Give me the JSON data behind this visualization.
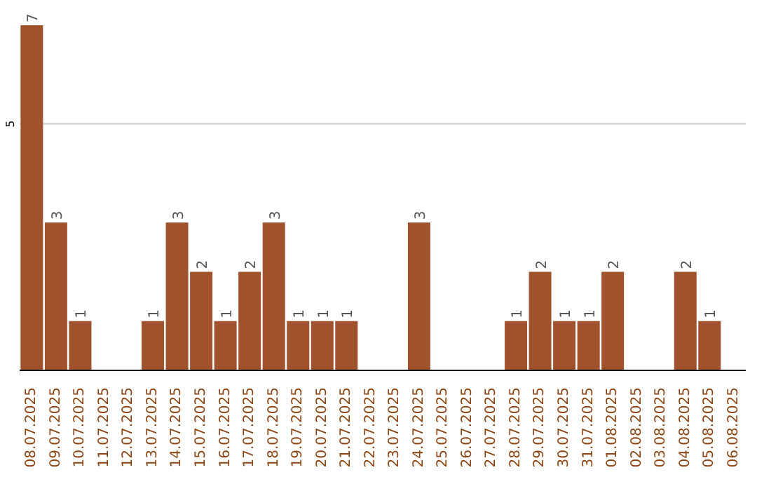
{
  "chart_data": {
    "type": "bar",
    "categories": [
      "08.07.2025",
      "09.07.2025",
      "10.07.2025",
      "11.07.2025",
      "12.07.2025",
      "13.07.2025",
      "14.07.2025",
      "15.07.2025",
      "16.07.2025",
      "17.07.2025",
      "18.07.2025",
      "19.07.2025",
      "20.07.2025",
      "21.07.2025",
      "22.07.2025",
      "23.07.2025",
      "24.07.2025",
      "25.07.2025",
      "26.07.2025",
      "27.07.2025",
      "28.07.2025",
      "29.07.2025",
      "30.07.2025",
      "31.07.2025",
      "01.08.2025",
      "02.08.2025",
      "03.08.2025",
      "04.08.2025",
      "05.08.2025",
      "06.08.2025"
    ],
    "values": [
      7,
      3,
      1,
      0,
      0,
      1,
      3,
      2,
      1,
      2,
      3,
      1,
      1,
      1,
      0,
      0,
      3,
      0,
      0,
      0,
      1,
      2,
      1,
      1,
      2,
      0,
      0,
      2,
      1,
      0
    ],
    "value_labels": [
      "7",
      "3",
      "1",
      null,
      null,
      "1",
      "3",
      "2",
      "1",
      "2",
      "3",
      "1",
      "1",
      "1",
      null,
      null,
      "3",
      null,
      null,
      null,
      "1",
      "2",
      "1",
      "1",
      "2",
      null,
      null,
      "2",
      "1",
      null
    ],
    "color": "#a0522d",
    "ylim": [
      0,
      7
    ],
    "yticks": [
      5
    ],
    "grid": "y"
  }
}
